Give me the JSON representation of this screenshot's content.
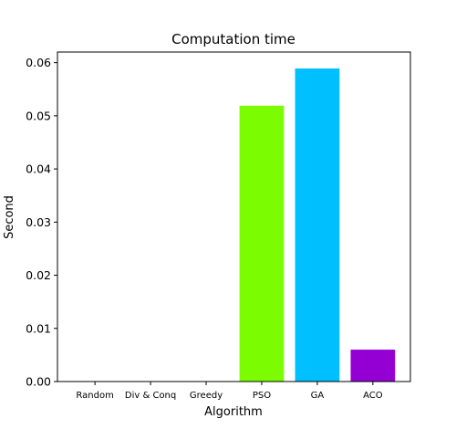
{
  "chart_data": {
    "type": "bar",
    "title": "Computation time",
    "xlabel": "Algorithm",
    "ylabel": "Second",
    "categories": [
      "Random",
      "Div & Conq",
      "Greedy",
      "PSO",
      "GA",
      "ACO"
    ],
    "values": [
      0.0,
      0.0,
      0.0,
      0.0519,
      0.0589,
      0.006
    ],
    "colors": [
      "#7cfc00",
      "#7cfc00",
      "#7cfc00",
      "#7cfc00",
      "#00bfff",
      "#9400d3"
    ],
    "ylim": [
      0,
      0.062
    ],
    "yticks": [
      0.0,
      0.01,
      0.02,
      0.03,
      0.04,
      0.05,
      0.06
    ],
    "ytick_labels": [
      "0.00",
      "0.01",
      "0.02",
      "0.03",
      "0.04",
      "0.05",
      "0.06"
    ],
    "grid": false,
    "legend": "none"
  }
}
